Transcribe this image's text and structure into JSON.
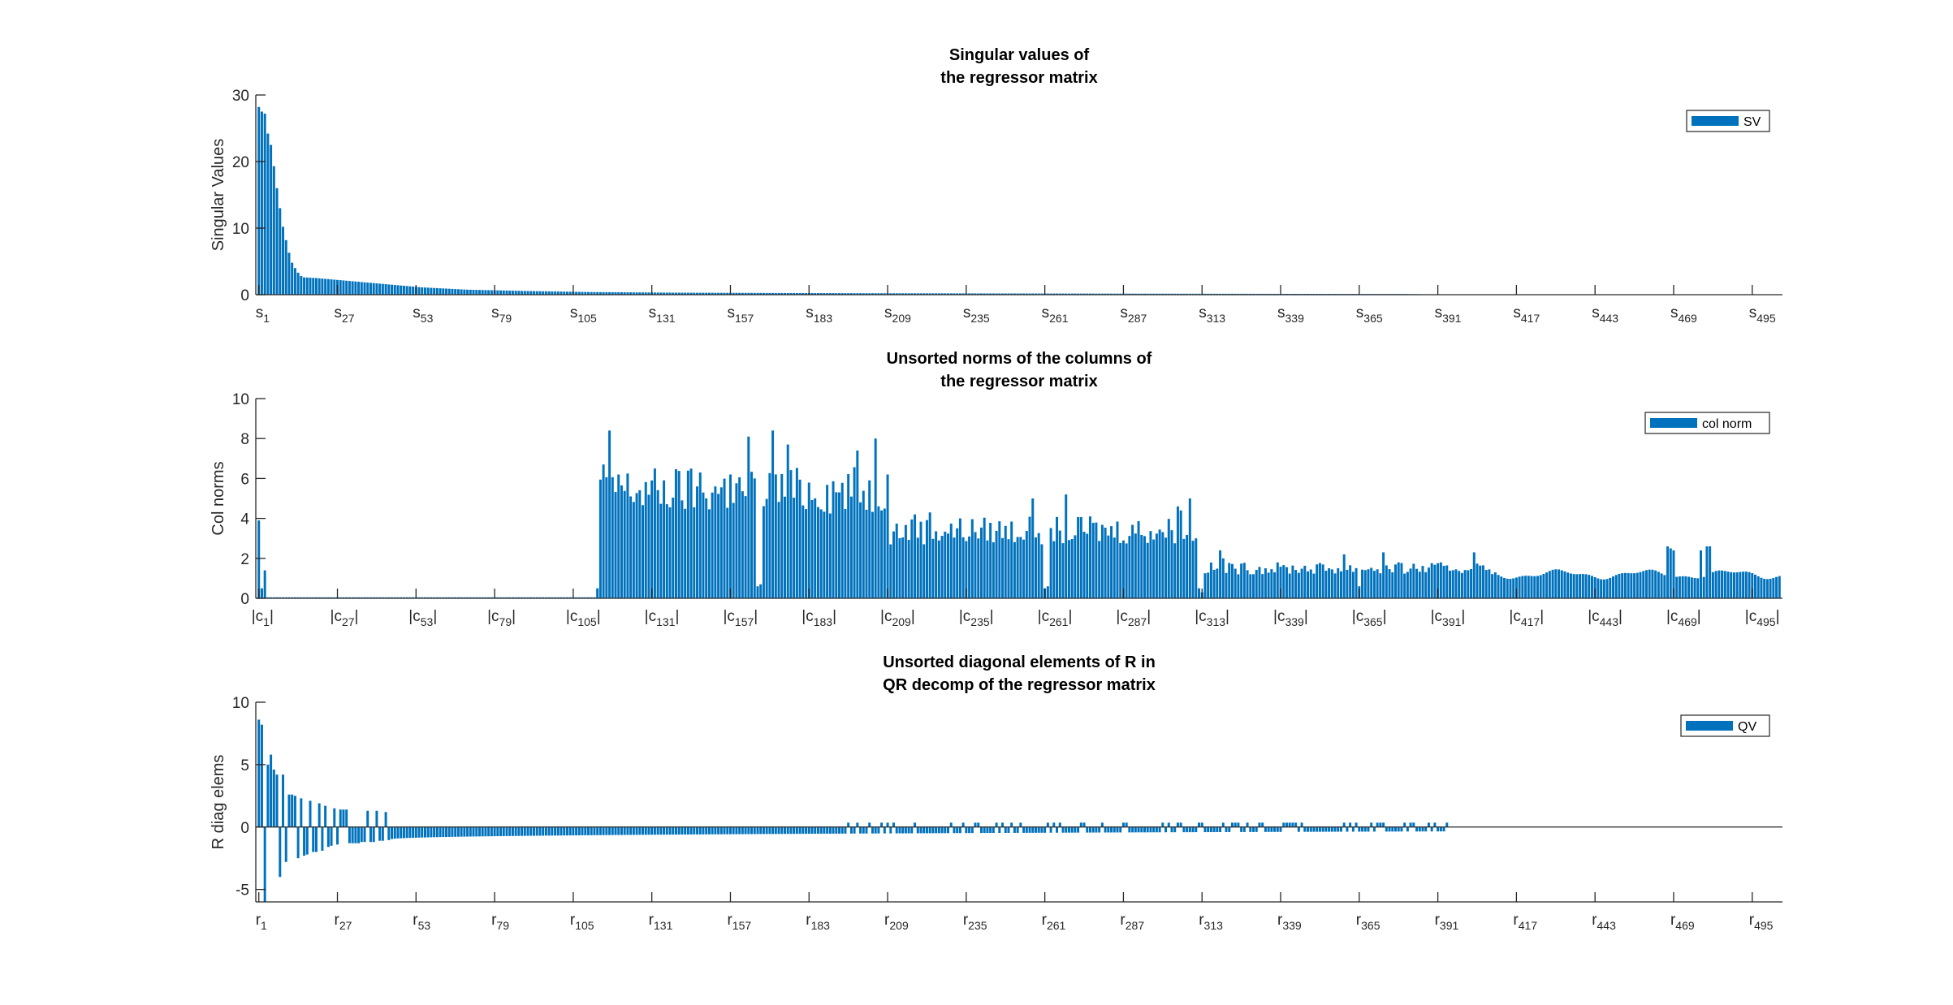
{
  "colors": {
    "bar": "#0072BD",
    "axis": "#262626",
    "legend_border": "#262626"
  },
  "chart_data": [
    {
      "type": "bar",
      "title_lines": [
        "Singular values of",
        "the regressor matrix"
      ],
      "ylabel": "Singular Values",
      "ylim": [
        0,
        30
      ],
      "yticks": [
        0,
        10,
        20,
        30
      ],
      "xtick_prefix": "s",
      "xtick_style": "plain",
      "xtick_indices": [
        1,
        27,
        53,
        79,
        105,
        131,
        157,
        183,
        209,
        235,
        261,
        287,
        313,
        339,
        365,
        391,
        417,
        443,
        469,
        495
      ],
      "n": 504,
      "legend": "SV",
      "legend_position": "top-right",
      "grid": false,
      "values_summary": "descending; sampled anchors, interpolated",
      "anchors": [
        [
          1,
          28.2
        ],
        [
          2,
          27.5
        ],
        [
          3,
          27.2
        ],
        [
          4,
          24.2
        ],
        [
          5,
          22.5
        ],
        [
          6,
          19.3
        ],
        [
          7,
          16
        ],
        [
          8,
          13
        ],
        [
          9,
          10.2
        ],
        [
          10,
          8.2
        ],
        [
          11,
          6.3
        ],
        [
          12,
          4.8
        ],
        [
          13,
          4
        ],
        [
          14,
          3.3
        ],
        [
          15,
          2.8
        ],
        [
          16,
          2.6
        ],
        [
          20,
          2.5
        ],
        [
          30,
          2.1
        ],
        [
          45,
          1.5
        ],
        [
          55,
          1.1
        ],
        [
          70,
          0.75
        ],
        [
          90,
          0.55
        ],
        [
          110,
          0.4
        ],
        [
          140,
          0.3
        ],
        [
          200,
          0.22
        ],
        [
          300,
          0.15
        ],
        [
          380,
          0.1
        ],
        [
          395,
          0.02
        ],
        [
          396,
          0
        ],
        [
          504,
          0
        ]
      ]
    },
    {
      "type": "bar",
      "title_lines": [
        "Unsorted norms of the columns of",
        "the regressor matrix"
      ],
      "ylabel": "Col norms",
      "ylim": [
        0,
        10
      ],
      "yticks": [
        0,
        2,
        4,
        6,
        8,
        10
      ],
      "xtick_prefix": "c",
      "xtick_style": "pipes",
      "xtick_indices": [
        1,
        27,
        53,
        79,
        105,
        131,
        157,
        183,
        209,
        235,
        261,
        287,
        313,
        339,
        365,
        391,
        417,
        443,
        469,
        495
      ],
      "n": 504,
      "legend": "col norm",
      "legend_position": "top-right",
      "grid": false,
      "segments": [
        {
          "from": 1,
          "to": 1,
          "value": 3.9
        },
        {
          "from": 2,
          "to": 2,
          "value": 0.5
        },
        {
          "from": 3,
          "to": 3,
          "value": 1.4
        },
        {
          "from": 4,
          "to": 112,
          "value": 0.05
        },
        {
          "from": 113,
          "to": 113,
          "value": 0.5
        },
        {
          "from": 114,
          "to": 209,
          "value": 5.4,
          "jitter": 1.2,
          "peaks": [
            [
              115,
              6.7
            ],
            [
              117,
              8.4
            ],
            [
              120,
              6.2
            ],
            [
              147,
              6.3
            ],
            [
              157,
              6.2
            ],
            [
              163,
              8.1
            ],
            [
              167,
              5.8
            ],
            [
              171,
              8.4
            ],
            [
              176,
              7.7
            ],
            [
              199,
              7.4
            ],
            [
              205,
              8.0
            ],
            [
              209,
              6.2
            ]
          ],
          "dips": [
            [
              166,
              0.6
            ],
            [
              167,
              0.7
            ],
            [
              213,
              0.5
            ]
          ]
        },
        {
          "from": 210,
          "to": 313,
          "value": 3.4,
          "jitter": 0.7,
          "peaks": [
            [
              218,
              4.2
            ],
            [
              223,
              4.3
            ],
            [
              257,
              5.0
            ],
            [
              268,
              5.2
            ],
            [
              276,
              4.1
            ],
            [
              305,
              4.6
            ],
            [
              306,
              4.4
            ],
            [
              309,
              5.0
            ]
          ],
          "dips": [
            [
              261,
              0.5
            ],
            [
              262,
              0.6
            ]
          ]
        },
        {
          "from": 314,
          "to": 410,
          "value": 1.5,
          "jitter": 0.3,
          "peaks": [
            [
              319,
              2.4
            ],
            [
              320,
              2.0
            ],
            [
              360,
              2.2
            ],
            [
              373,
              2.3
            ],
            [
              403,
              2.3
            ]
          ],
          "dips": [
            [
              312,
              0.5
            ],
            [
              313,
              0.3
            ],
            [
              365,
              0.6
            ]
          ]
        },
        {
          "from": 411,
          "to": 504,
          "value": 1.2,
          "wave": true,
          "peaks": [
            [
              467,
              2.6
            ],
            [
              468,
              2.5
            ],
            [
              469,
              2.4
            ],
            [
              478,
              2.4
            ],
            [
              480,
              2.6
            ],
            [
              481,
              2.6
            ]
          ]
        }
      ]
    },
    {
      "type": "bar",
      "title_lines": [
        "Unsorted diagonal elements of R in",
        "QR decomp of the regressor matrix"
      ],
      "ylabel": "R diag elems",
      "ylim": [
        -6,
        10
      ],
      "yticks": [
        -5,
        0,
        5,
        10
      ],
      "xtick_prefix": "r",
      "xtick_style": "plain",
      "xtick_indices": [
        1,
        27,
        53,
        79,
        105,
        131,
        157,
        183,
        209,
        235,
        261,
        287,
        313,
        339,
        365,
        391,
        417,
        443,
        469,
        495
      ],
      "n": 504,
      "legend": "QV",
      "legend_position": "top-right",
      "grid": false,
      "explicit": [
        [
          1,
          8.6
        ],
        [
          2,
          8.2
        ],
        [
          3,
          -6
        ],
        [
          4,
          5
        ],
        [
          5,
          5.8
        ],
        [
          6,
          4.6
        ],
        [
          7,
          4.2
        ],
        [
          8,
          -4
        ],
        [
          9,
          4.2
        ],
        [
          10,
          -2.8
        ],
        [
          11,
          2.6
        ],
        [
          12,
          2.6
        ],
        [
          13,
          2.5
        ],
        [
          14,
          -2.5
        ],
        [
          15,
          2.3
        ],
        [
          16,
          -2.3
        ],
        [
          17,
          -2.2
        ],
        [
          18,
          2.1
        ],
        [
          19,
          -2
        ],
        [
          20,
          -2
        ],
        [
          21,
          1.9
        ],
        [
          22,
          -1.9
        ],
        [
          23,
          1.7
        ],
        [
          24,
          -1.6
        ],
        [
          25,
          -1.5
        ],
        [
          26,
          1.5
        ],
        [
          27,
          -1.4
        ],
        [
          28,
          1.4
        ],
        [
          29,
          1.4
        ],
        [
          30,
          1.4
        ],
        [
          31,
          -1.3
        ],
        [
          32,
          -1.3
        ],
        [
          33,
          -1.3
        ],
        [
          34,
          -1.3
        ],
        [
          35,
          -1.2
        ],
        [
          36,
          -1.2
        ],
        [
          37,
          1.3
        ],
        [
          38,
          -1.2
        ],
        [
          39,
          -1.2
        ],
        [
          40,
          1.3
        ],
        [
          41,
          -1.1
        ],
        [
          42,
          -1.1
        ],
        [
          43,
          1.2
        ]
      ],
      "tail": {
        "from": 44,
        "to": 394,
        "start": -1.05,
        "end": -0.35,
        "pos_region": [
          196,
          394
        ]
      }
    }
  ]
}
